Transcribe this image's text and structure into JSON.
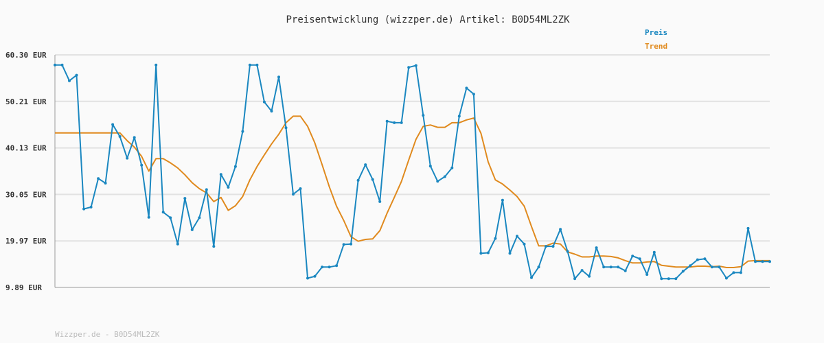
{
  "colors": {
    "price": "#1a87c0",
    "trend": "#e08a1e",
    "grid": "#e2e2e2",
    "axis": "#999999",
    "background": "#fafafa"
  },
  "chart_data": {
    "type": "line",
    "title": "Preisentwicklung (wizzper.de) Artikel: B0D54ML2ZK",
    "footer": "Wizzper.de - B0D54ML2ZK",
    "xlabel": "",
    "ylabel": "",
    "ylim": [
      9.89,
      60.3
    ],
    "yticks": [
      "60.30 EUR",
      "50.21 EUR",
      "40.13 EUR",
      "30.05 EUR",
      "19.97 EUR",
      "9.89 EUR"
    ],
    "grid": true,
    "legend_position": "top-right",
    "series": [
      {
        "name": "Preis",
        "color": "#1a87c0",
        "values": [
          58.1,
          58.1,
          54.7,
          55.9,
          26.9,
          27.3,
          33.5,
          32.5,
          45.2,
          42.6,
          37.9,
          42.4,
          36.4,
          25.1,
          58.1,
          26.2,
          25.0,
          19.3,
          29.2,
          22.4,
          25.0,
          31.1,
          18.8,
          34.4,
          31.6,
          36.1,
          43.7,
          58.1,
          58.1,
          50.1,
          48.1,
          55.5,
          44.5,
          30.1,
          31.3,
          11.9,
          12.3,
          14.3,
          14.3,
          14.6,
          19.2,
          19.3,
          33.1,
          36.5,
          33.3,
          28.5,
          45.9,
          45.6,
          45.6,
          57.6,
          58.0,
          47.2,
          36.2,
          32.9,
          33.9,
          35.8,
          47.0,
          53.1,
          51.8,
          17.3,
          17.4,
          20.5,
          28.8,
          17.3,
          21.0,
          19.3,
          12.0,
          14.3,
          18.8,
          18.8,
          22.5,
          17.7,
          11.8,
          13.6,
          12.3,
          18.5,
          14.3,
          14.3,
          14.3,
          13.5,
          16.7,
          16.1,
          12.7,
          17.5,
          11.8,
          11.8,
          11.8,
          13.4,
          14.6,
          15.9,
          16.1,
          14.3,
          14.3,
          11.9,
          13.1,
          13.1,
          22.7,
          15.5,
          15.5,
          15.5
        ]
      },
      {
        "name": "Trend",
        "color": "#e08a1e",
        "values": [
          43.4,
          43.4,
          43.4,
          43.4,
          43.4,
          43.4,
          43.4,
          43.4,
          43.4,
          43.4,
          41.7,
          40.3,
          38.3,
          35.1,
          37.8,
          37.8,
          36.9,
          35.8,
          34.3,
          32.6,
          31.3,
          30.4,
          28.5,
          29.4,
          26.6,
          27.6,
          29.6,
          33.2,
          36.1,
          38.6,
          41.0,
          43.1,
          45.6,
          47.0,
          47.0,
          44.8,
          41.2,
          36.5,
          31.7,
          27.5,
          24.4,
          20.9,
          19.9,
          20.3,
          20.4,
          22.2,
          26.0,
          29.4,
          32.9,
          37.5,
          42.0,
          44.8,
          45.1,
          44.6,
          44.6,
          45.6,
          45.6,
          46.2,
          46.6,
          43.3,
          37.1,
          33.2,
          32.3,
          31.0,
          29.6,
          27.5,
          23.1,
          18.9,
          18.9,
          19.5,
          19.3,
          17.6,
          17.1,
          16.5,
          16.5,
          16.7,
          16.7,
          16.6,
          16.3,
          15.7,
          15.2,
          15.2,
          15.4,
          15.5,
          14.7,
          14.5,
          14.3,
          14.3,
          14.3,
          14.5,
          14.5,
          14.4,
          14.5,
          14.2,
          14.2,
          14.4,
          15.6,
          15.7,
          15.7,
          15.7
        ]
      }
    ]
  }
}
